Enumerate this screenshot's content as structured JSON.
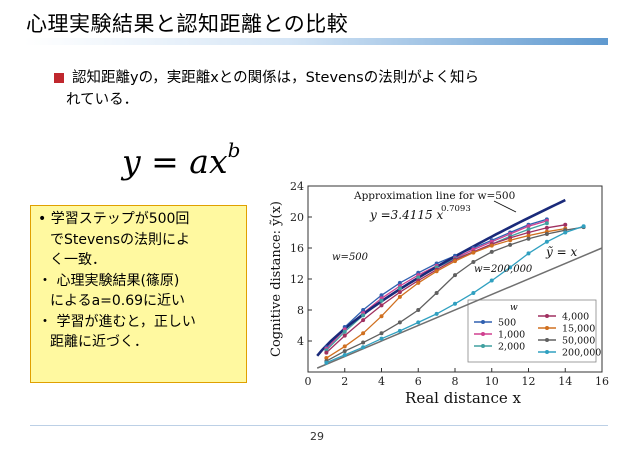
{
  "slide": {
    "title": "心理実験結果と認知距離との比較",
    "bullet_line1": "認知距離yの，実距離xとの関係は，Stevensの法則がよく知ら",
    "bullet_line2": "れている．",
    "formula_base": "y = ax",
    "formula_exp": "b",
    "page_number": "29",
    "accent_color": "#c0282e",
    "title_bar_color": "#5f99cf",
    "note_background": "#fff9a0"
  },
  "note": {
    "lines": [
      "• 学習ステップが500回",
      "でStevensの法則によ",
      "く一致．",
      "・ 心理実験結果(篠原)",
      "によるa=0.69に近い",
      "・ 学習が進むと，正しい",
      "距離に近づく．"
    ]
  },
  "chart_data": {
    "type": "line",
    "xlabel": "Real distance x",
    "ylabel": "Cognitive distance: ỹ(x)",
    "xlim": [
      0,
      16
    ],
    "ylim": [
      0,
      24
    ],
    "xticks": [
      "0",
      "2",
      "4",
      "6",
      "8",
      "10",
      "12",
      "14",
      "16"
    ],
    "yticks": [
      "4",
      "8",
      "12",
      "16",
      "20",
      "24"
    ],
    "annotations": {
      "approx_label": "Approximation line for w=500",
      "approx_equation": "y =3.4115 x",
      "approx_exponent": "0.7093",
      "w500_label": "w=500",
      "w200000_label": "w=200,000",
      "identity_label": "ỹ = x"
    },
    "legend": {
      "title": "w",
      "entries": [
        "500",
        "1,000",
        "2,000",
        "4,000",
        "15,000",
        "50,000",
        "200,000"
      ]
    },
    "approximation_line": {
      "a": 3.4115,
      "b": 0.7093,
      "x": [
        0.5,
        14
      ]
    },
    "identity_line": {
      "x": [
        0.5,
        16
      ]
    },
    "series": [
      {
        "name": "500",
        "color": "#3060b0",
        "x": [
          1,
          2,
          3,
          4,
          5,
          6,
          7,
          8,
          9,
          10,
          11,
          12,
          13
        ],
        "y": [
          3.2,
          5.8,
          8.0,
          9.9,
          11.5,
          12.8,
          14.0,
          15.0,
          16.0,
          17.0,
          18.0,
          19.0,
          19.7
        ]
      },
      {
        "name": "1,000",
        "color": "#d04090",
        "x": [
          1,
          2,
          3,
          4,
          5,
          6,
          7,
          8,
          9,
          10,
          11,
          12,
          13
        ],
        "y": [
          3.0,
          5.5,
          7.6,
          9.5,
          11.1,
          12.5,
          13.7,
          14.7,
          15.8,
          16.8,
          17.8,
          18.8,
          19.5
        ]
      },
      {
        "name": "2,000",
        "color": "#40a0a0",
        "x": [
          1,
          2,
          3,
          4,
          5,
          6,
          7,
          8,
          9,
          10,
          11,
          12,
          13
        ],
        "y": [
          2.8,
          5.2,
          7.3,
          9.2,
          10.8,
          12.2,
          13.5,
          14.6,
          15.5,
          16.5,
          17.5,
          18.4,
          19.2
        ]
      },
      {
        "name": "4,000",
        "color": "#a03060",
        "x": [
          1,
          2,
          3,
          4,
          5,
          6,
          7,
          8,
          9,
          10,
          11,
          12,
          13,
          14
        ],
        "y": [
          2.5,
          4.7,
          6.7,
          8.6,
          10.3,
          11.8,
          13.2,
          14.5,
          15.5,
          16.5,
          17.3,
          18.0,
          18.6,
          19.0
        ]
      },
      {
        "name": "15,000",
        "color": "#d07020",
        "x": [
          1,
          2,
          3,
          4,
          5,
          6,
          7,
          8,
          9,
          10,
          11,
          12,
          13,
          14
        ],
        "y": [
          1.8,
          3.3,
          5.0,
          7.2,
          9.7,
          11.5,
          13.0,
          14.3,
          15.4,
          16.3,
          17.0,
          17.6,
          18.1,
          18.5
        ]
      },
      {
        "name": "50,000",
        "color": "#606060",
        "x": [
          1,
          2,
          3,
          4,
          5,
          6,
          7,
          8,
          9,
          10,
          11,
          12,
          13,
          14,
          15
        ],
        "y": [
          1.4,
          2.7,
          3.8,
          5.0,
          6.4,
          8.0,
          10.2,
          12.5,
          14.2,
          15.5,
          16.4,
          17.2,
          17.8,
          18.3,
          18.7
        ]
      },
      {
        "name": "200,000",
        "color": "#30a0c0",
        "x": [
          1,
          2,
          3,
          4,
          5,
          6,
          7,
          8,
          9,
          10,
          11,
          12,
          13,
          14,
          15
        ],
        "y": [
          1.2,
          2.2,
          3.2,
          4.3,
          5.3,
          6.4,
          7.5,
          8.8,
          10.2,
          11.8,
          13.5,
          15.3,
          16.8,
          18.0,
          18.8
        ]
      }
    ]
  }
}
